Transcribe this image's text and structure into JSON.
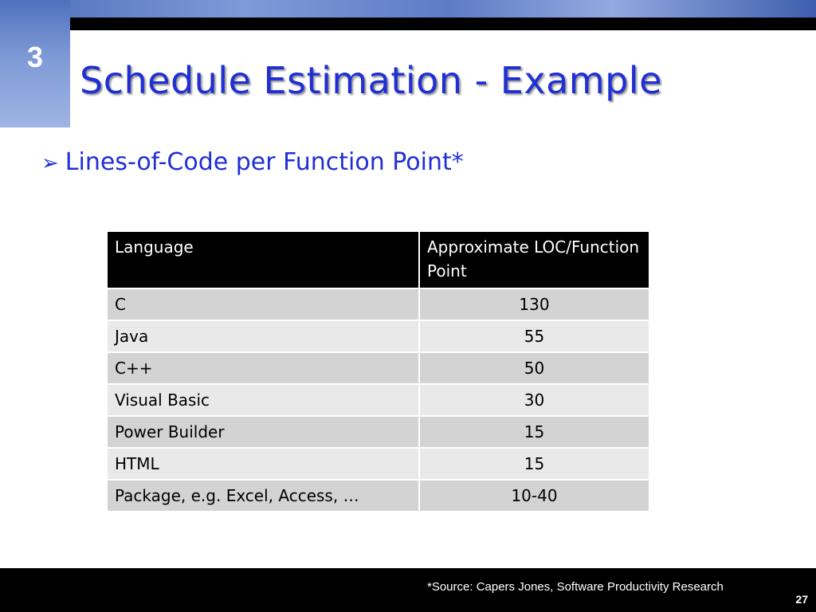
{
  "slide": {
    "chapter_number": "3",
    "title": "Schedule Estimation - Example",
    "bullet": "Lines-of-Code per Function Point*",
    "bullet_icon": "arrow-bullet-icon",
    "title_color": "#1f2fd6"
  },
  "table": {
    "headers": [
      "Language",
      "Approximate LOC/Function Point"
    ],
    "rows": [
      {
        "language": "C",
        "loc": "130"
      },
      {
        "language": "Java",
        "loc": "55"
      },
      {
        "language": "C++",
        "loc": "50"
      },
      {
        "language": "Visual Basic",
        "loc": "30"
      },
      {
        "language": "Power Builder",
        "loc": "15"
      },
      {
        "language": "HTML",
        "loc": "15"
      },
      {
        "language": "Package, e.g. Excel, Access, …",
        "loc": "10-40"
      }
    ]
  },
  "footer": {
    "source": "*Source: Capers Jones, Software Productivity Research",
    "page_number": "27"
  }
}
